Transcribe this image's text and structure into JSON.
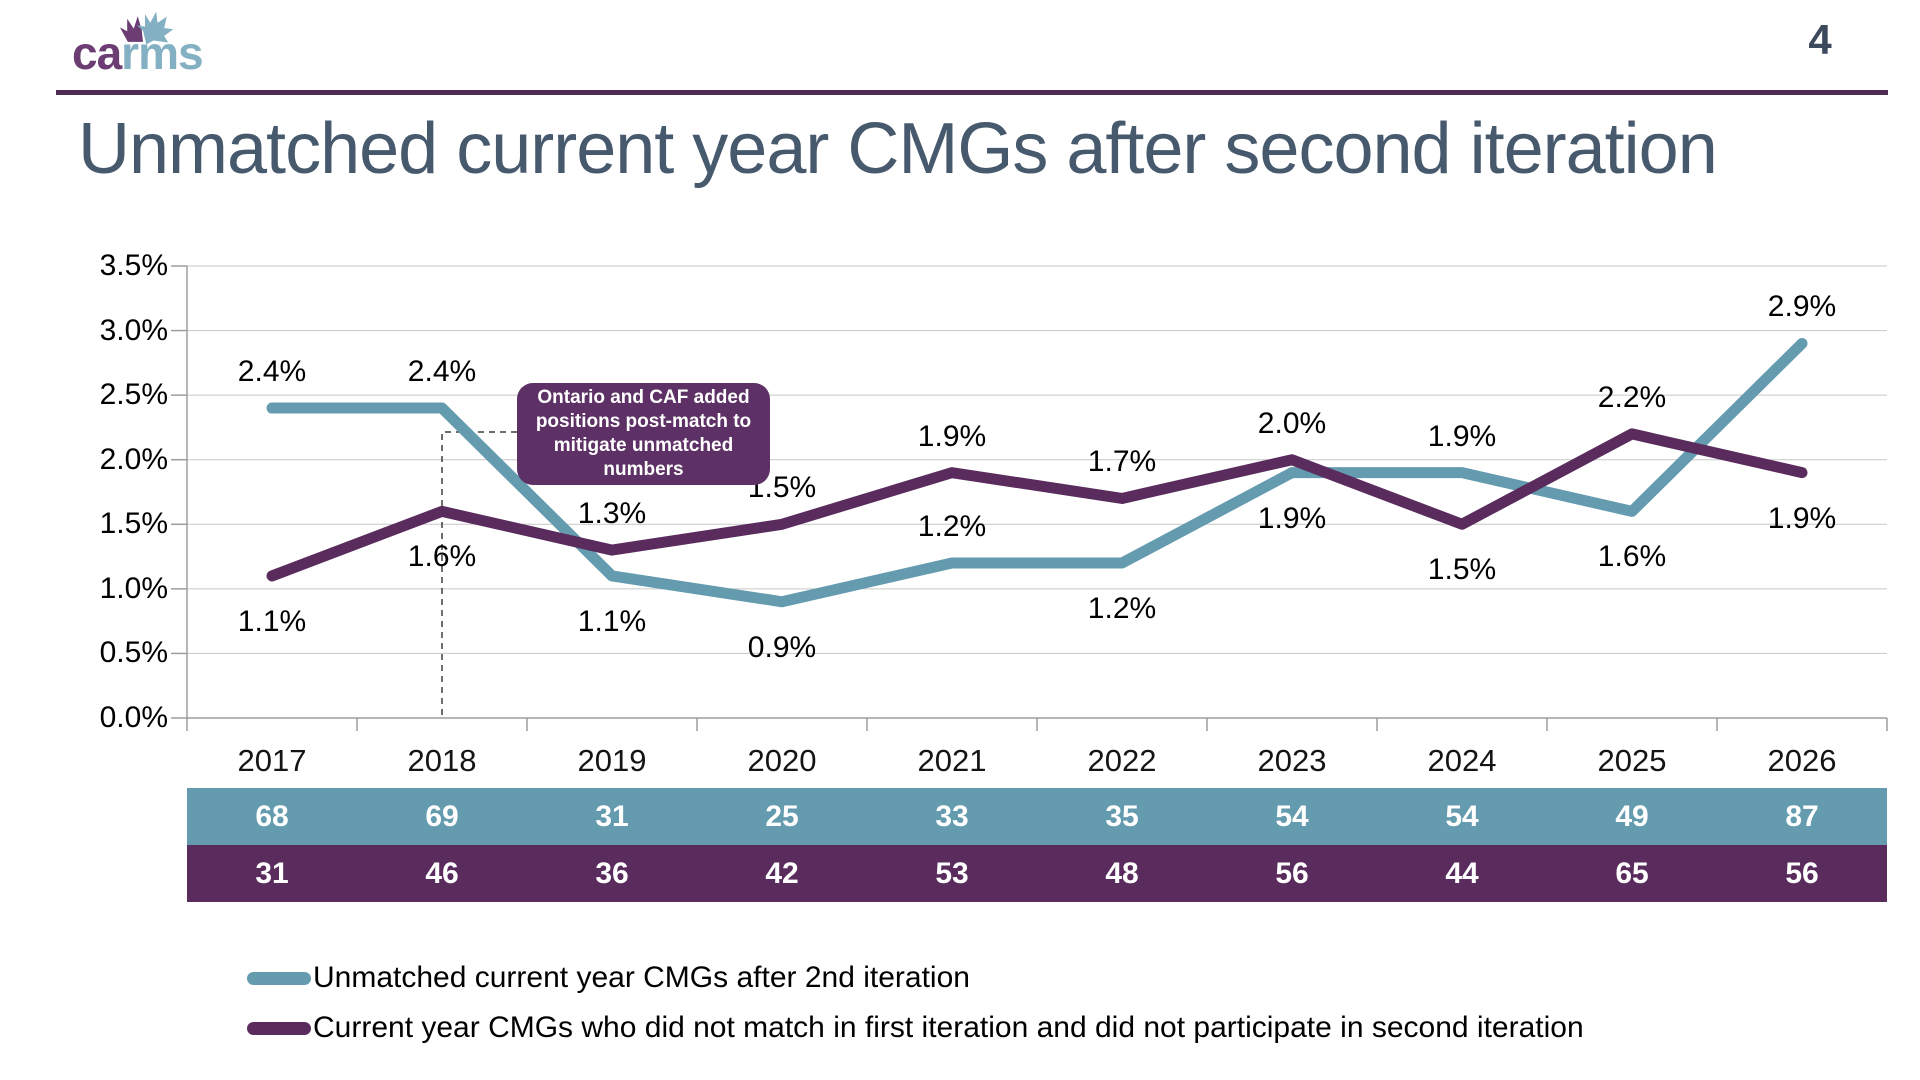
{
  "header": {
    "logo_text_left": "ca",
    "logo_text_right": "rms",
    "logo_colors": {
      "purple": "#6B3D73",
      "teal": "#83B1C3"
    },
    "page_number": "4"
  },
  "title": "Unmatched current year CMGs after second iteration",
  "chart_data": {
    "type": "line",
    "title": "Unmatched current year CMGs after second iteration",
    "categories": [
      "2017",
      "2018",
      "2019",
      "2020",
      "2021",
      "2022",
      "2023",
      "2024",
      "2025",
      "2026"
    ],
    "ylim": [
      0,
      3.5
    ],
    "y_tick_step": 0.5,
    "y_tick_labels": [
      "3.5%",
      "3.0%",
      "2.5%",
      "2.0%",
      "1.5%",
      "1.0%",
      "0.5%",
      "0.0%"
    ],
    "grid": true,
    "legend_position": "bottom-left",
    "series": [
      {
        "key": "unmatched-after-2nd-iteration",
        "name": "Unmatched current year CMGs after 2nd iteration",
        "color": "#649BAF",
        "values": [
          2.4,
          2.4,
          1.1,
          0.9,
          1.2,
          1.2,
          1.9,
          1.9,
          1.6,
          2.9
        ],
        "point_labels": [
          "2.4%",
          "2.4%",
          "1.1%",
          "0.9%",
          "1.2%",
          "1.2%",
          "1.9%",
          "1.9%",
          "1.6%",
          "2.9%"
        ],
        "label_side": [
          "above",
          "above",
          "below",
          "below",
          "above",
          "below",
          "below",
          "above",
          "below",
          "above"
        ],
        "table_counts": [
          68,
          69,
          31,
          25,
          33,
          35,
          54,
          54,
          49,
          87
        ]
      },
      {
        "key": "did-not-participate-2nd-iteration",
        "name": "Current year CMGs who did not match in first iteration and did not participate in second iteration",
        "color": "#5A2C5E",
        "values": [
          1.1,
          1.6,
          1.3,
          1.5,
          1.9,
          1.7,
          2.0,
          1.5,
          2.2,
          1.9
        ],
        "point_labels": [
          "1.1%",
          "1.6%",
          "1.3%",
          "1.5%",
          "1.9%",
          "1.7%",
          "2.0%",
          "1.5%",
          "2.2%",
          "1.9%"
        ],
        "label_side": [
          "below",
          "below",
          "above",
          "above",
          "above",
          "above",
          "above",
          "below",
          "above",
          "below"
        ],
        "table_counts": [
          31,
          46,
          36,
          42,
          53,
          48,
          56,
          44,
          65,
          56
        ]
      }
    ],
    "annotation": {
      "text": "Ontario and CAF added positions post-match to mitigate unmatched numbers",
      "target_category": "2018"
    }
  }
}
